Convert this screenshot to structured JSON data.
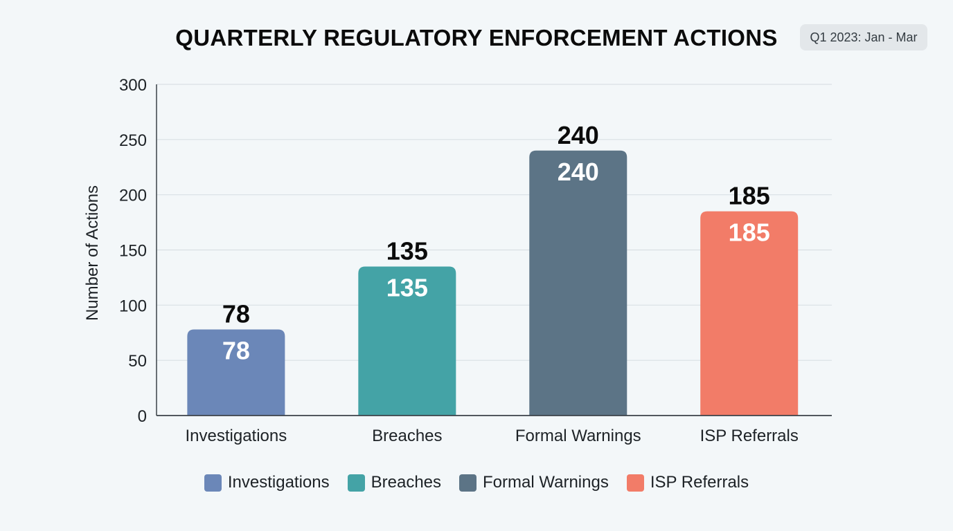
{
  "chart_data": {
    "type": "bar",
    "title": "QUARTERLY REGULATORY ENFORCEMENT ACTIONS",
    "period": "Q1 2023: Jan - Mar",
    "ylabel": "Number of Actions",
    "xlabel": "",
    "ylim": [
      0,
      300
    ],
    "yticks": [
      0,
      50,
      100,
      150,
      200,
      250,
      300
    ],
    "grid": true,
    "legend_position": "bottom",
    "categories": [
      "Investigations",
      "Breaches",
      "Formal Warnings",
      "ISP Referrals"
    ],
    "values": [
      78,
      135,
      240,
      185
    ],
    "colors": [
      "#6b87b8",
      "#44a3a6",
      "#5c7486",
      "#f27c68"
    ]
  }
}
